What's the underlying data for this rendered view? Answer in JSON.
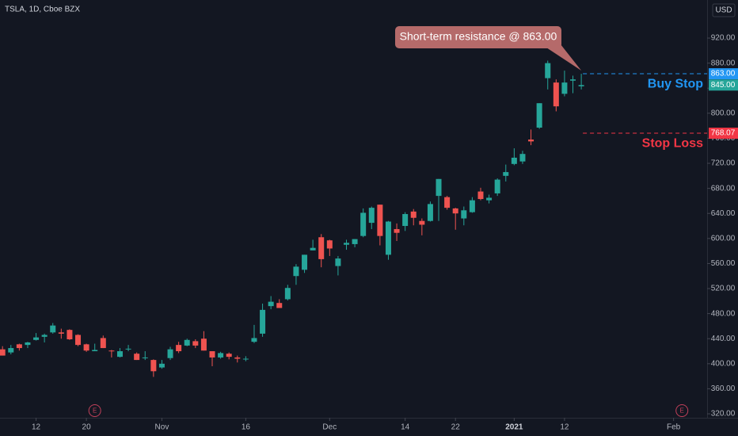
{
  "chart_data": {
    "type": "candlestick",
    "title": "TSLA, 1D, Cboe BZX",
    "currency": "USD",
    "up_color": "#26a69a",
    "down_color": "#ef5350",
    "grid": false,
    "open": [
      423,
      418,
      431,
      430,
      438,
      443,
      450,
      450,
      454,
      446,
      431,
      420,
      441,
      421,
      411,
      423,
      416,
      409,
      406,
      394,
      409,
      430,
      429,
      436,
      440,
      420,
      410,
      416,
      410,
      408,
      435,
      448,
      492,
      497,
      503,
      540,
      550,
      581,
      602,
      597,
      556,
      590,
      591,
      604,
      625,
      654,
      574,
      615,
      620,
      643,
      628,
      628,
      668,
      666,
      648,
      632,
      642,
      675,
      661,
      672,
      700,
      719,
      723,
      758,
      777,
      856,
      849,
      831,
      852,
      843
    ],
    "high": [
      428,
      430,
      432,
      435,
      449,
      448,
      465,
      456,
      455,
      447,
      432,
      432,
      445,
      422,
      425,
      430,
      418,
      420,
      407,
      406,
      427,
      435,
      440,
      439,
      452,
      420,
      419,
      418,
      413,
      412,
      462,
      496,
      508,
      503,
      526,
      559,
      574,
      598,
      607,
      598,
      572,
      598,
      599,
      648,
      651,
      654,
      628,
      624,
      642,
      647,
      632,
      659,
      695,
      668,
      649,
      651,
      666,
      681,
      670,
      696,
      718,
      744,
      740,
      774,
      816,
      884,
      854,
      868,
      860,
      863
    ],
    "low": [
      413,
      415,
      421,
      425,
      437,
      434,
      448,
      440,
      438,
      428,
      419,
      420,
      425,
      410,
      410,
      420,
      406,
      406,
      379,
      392,
      406,
      417,
      428,
      425,
      421,
      396,
      408,
      407,
      402,
      404,
      433,
      443,
      487,
      489,
      501,
      526,
      545,
      581,
      554,
      572,
      541,
      582,
      586,
      602,
      615,
      589,
      566,
      596,
      612,
      621,
      605,
      627,
      628,
      646,
      614,
      621,
      641,
      661,
      656,
      668,
      691,
      717,
      719,
      749,
      775,
      838,
      803,
      827,
      832,
      838
    ],
    "close": [
      413,
      425,
      425,
      434,
      442,
      446,
      461,
      448,
      439,
      430,
      421,
      422,
      425,
      420,
      420,
      424,
      406,
      410,
      388,
      400,
      423,
      420,
      438,
      429,
      421,
      410,
      417,
      411,
      408,
      408,
      441,
      486,
      499,
      489,
      521,
      555,
      574,
      585,
      567,
      584,
      568,
      593,
      599,
      641,
      649,
      604,
      627,
      609,
      639,
      633,
      622,
      655,
      695,
      649,
      640,
      645,
      661,
      663,
      665,
      694,
      706,
      729,
      735,
      755,
      816,
      880,
      811,
      849,
      854,
      845
    ],
    "ylim": [
      313.7,
      980.8
    ],
    "yticks": [
      {
        "value": 320,
        "label": "320.00"
      },
      {
        "value": 360,
        "label": "360.00"
      },
      {
        "value": 400,
        "label": "400.00"
      },
      {
        "value": 440,
        "label": "440.00"
      },
      {
        "value": 480,
        "label": "480.00"
      },
      {
        "value": 520,
        "label": "520.00"
      },
      {
        "value": 560,
        "label": "560.00"
      },
      {
        "value": 600,
        "label": "600.00"
      },
      {
        "value": 640,
        "label": "640.00"
      },
      {
        "value": 680,
        "label": "680.00"
      },
      {
        "value": 720,
        "label": "720.00"
      },
      {
        "value": 760,
        "label": "760.00"
      },
      {
        "value": 800,
        "label": "800.00"
      },
      {
        "value": 840,
        "label": "840.00"
      },
      {
        "value": 880,
        "label": "880.00"
      },
      {
        "value": 920,
        "label": "920.00"
      }
    ],
    "xlim": [
      -0.3,
      84
    ],
    "xticks": [
      {
        "value": 4,
        "label": "12"
      },
      {
        "value": 10,
        "label": "20"
      },
      {
        "value": 19,
        "label": "Nov"
      },
      {
        "value": 29,
        "label": "16"
      },
      {
        "value": 39,
        "label": "Dec"
      },
      {
        "value": 48,
        "label": "14"
      },
      {
        "value": 54,
        "label": "22"
      },
      {
        "value": 61,
        "label": "2021"
      },
      {
        "value": 67,
        "label": "12"
      },
      {
        "value": 80,
        "label": "Feb"
      }
    ],
    "levels": [
      {
        "name": "Buy Stop",
        "value": 863,
        "value_label": "863.00",
        "color": "#2196f3"
      },
      {
        "name": "Stop Loss",
        "value": 768.07,
        "value_label": "768.07",
        "color": "#f23645"
      }
    ],
    "last_price_label": "845.00",
    "annotation": "Short-term resistance @ 863.00",
    "events": [
      {
        "label": "E",
        "x": 11
      },
      {
        "label": "E",
        "x": 81
      }
    ]
  }
}
